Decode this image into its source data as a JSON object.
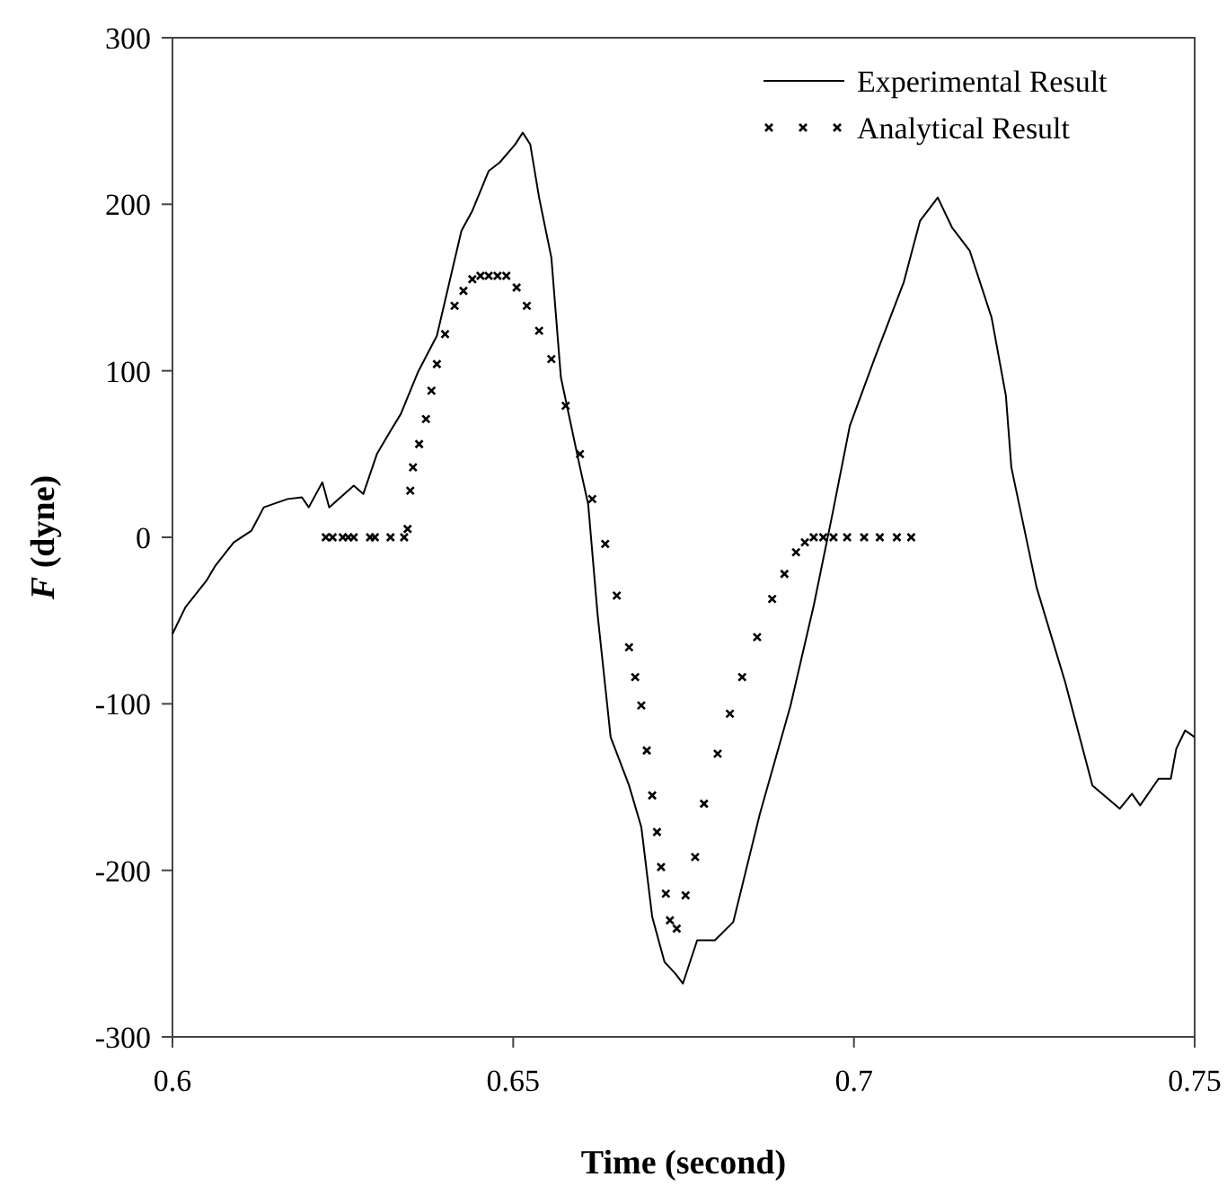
{
  "chart_data": {
    "type": "line",
    "xlabel": "Time (second)",
    "ylabel": "F (dyne)",
    "xlim": [
      0.6,
      0.75
    ],
    "xticks": [
      0.6,
      0.65,
      0.7,
      0.75
    ],
    "ylim": [
      -300,
      300
    ],
    "yticks": [
      -300,
      -200,
      -100,
      0,
      100,
      200,
      300
    ],
    "grid": false,
    "legend": "top right",
    "series": [
      {
        "name": "Experimental Result",
        "color": "#000000",
        "marker": "none",
        "x": [
          0.6,
          0.6019,
          0.605,
          0.6063,
          0.609,
          0.6116,
          0.6134,
          0.6169,
          0.619,
          0.62,
          0.622,
          0.623,
          0.6266,
          0.628,
          0.63,
          0.632,
          0.6335,
          0.636,
          0.6388,
          0.6424,
          0.644,
          0.6464,
          0.648,
          0.6503,
          0.6514,
          0.6525,
          0.6538,
          0.6556,
          0.657,
          0.6598,
          0.661,
          0.6624,
          0.6643,
          0.667,
          0.6688,
          0.6704,
          0.6722,
          0.6738,
          0.6749,
          0.677,
          0.6796,
          0.6823,
          0.6862,
          0.6907,
          0.6941,
          0.6968,
          0.6994,
          0.703,
          0.7073,
          0.7097,
          0.7123,
          0.7144,
          0.717,
          0.7202,
          0.7223,
          0.7231,
          0.7268,
          0.731,
          0.735,
          0.739,
          0.7408,
          0.742,
          0.7447,
          0.7465,
          0.7473,
          0.7486,
          0.75
        ],
        "values": [
          -58,
          -42,
          -26,
          -17,
          -3,
          4,
          18,
          23,
          24,
          18,
          33,
          18,
          31,
          26,
          50,
          64,
          74,
          99,
          121,
          184,
          196,
          220,
          225,
          236,
          243,
          236,
          204,
          168,
          96,
          42,
          20,
          -47,
          -120,
          -149,
          -174,
          -228,
          -255,
          -262,
          -268,
          -242,
          -242,
          -231,
          -166,
          -101,
          -41,
          13,
          67,
          107,
          153,
          190,
          204,
          186,
          172,
          132,
          85,
          42,
          -30,
          -87,
          -149,
          -163,
          -154,
          -161,
          -145,
          -145,
          -127,
          -116,
          -120
        ]
      },
      {
        "name": "Analytical Result",
        "type": "scatter",
        "color": "#000000",
        "marker": "cross",
        "x": [
          0.6225,
          0.6235,
          0.625,
          0.6258,
          0.6266,
          0.629,
          0.6297,
          0.632,
          0.634,
          0.6345,
          0.6349,
          0.6353,
          0.6362,
          0.6372,
          0.638,
          0.6388,
          0.64,
          0.6414,
          0.6427,
          0.644,
          0.6452,
          0.6464,
          0.6477,
          0.649,
          0.6505,
          0.652,
          0.6538,
          0.6556,
          0.6577,
          0.6598,
          0.6616,
          0.6635,
          0.6652,
          0.667,
          0.6679,
          0.6688,
          0.6696,
          0.6704,
          0.6711,
          0.6717,
          0.6724,
          0.673,
          0.674,
          0.6753,
          0.6767,
          0.678,
          0.68,
          0.6818,
          0.6836,
          0.6858,
          0.688,
          0.6898,
          0.6915,
          0.6928,
          0.6941,
          0.6955,
          0.697,
          0.699,
          0.7015,
          0.7038,
          0.7063,
          0.7084
        ],
        "values": [
          0,
          0,
          0,
          0,
          0,
          0,
          0,
          0,
          0,
          5,
          28,
          42,
          56,
          71,
          88,
          104,
          122,
          139,
          148,
          155,
          157,
          157,
          157,
          157,
          150,
          139,
          124,
          107,
          79,
          50,
          23,
          -4,
          -35,
          -66,
          -84,
          -101,
          -128,
          -155,
          -177,
          -198,
          -214,
          -230,
          -235,
          -215,
          -192,
          -160,
          -130,
          -106,
          -84,
          -60,
          -37,
          -22,
          -9,
          -3,
          0,
          0,
          0,
          0,
          0,
          0,
          0,
          0
        ]
      }
    ]
  }
}
